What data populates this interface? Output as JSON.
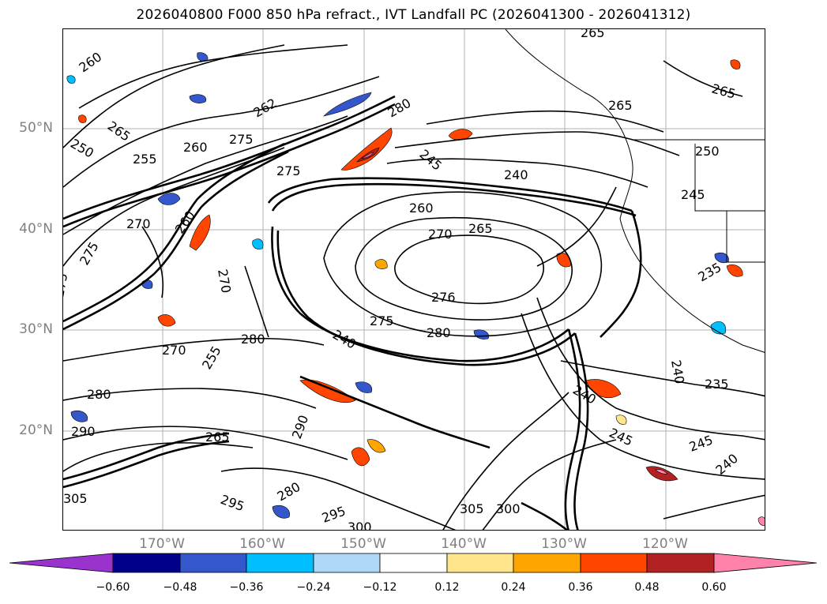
{
  "title": "2026040800 F000 850 hPa refract., IVT Landfall PC (2026041300 - 2026041312)",
  "map": {
    "lat_labels": [
      "50°N",
      "40°N",
      "30°N",
      "20°N"
    ],
    "lon_labels": [
      "170°W",
      "160°W",
      "150°W",
      "140°W",
      "130°W",
      "120°W"
    ],
    "contour_labels": [
      "260",
      "265",
      "250",
      "255",
      "260",
      "262",
      "270",
      "275",
      "280",
      "245",
      "240",
      "265",
      "265",
      "265",
      "260",
      "270",
      "260",
      "270",
      "265",
      "280",
      "275",
      "275",
      "240",
      "280",
      "276",
      "270",
      "275",
      "280",
      "290",
      "265",
      "255",
      "240",
      "245",
      "245",
      "235",
      "240",
      "305",
      "300",
      "295",
      "280",
      "235",
      "250",
      "245",
      "240",
      "275",
      "290",
      "295",
      "300",
      "305"
    ],
    "grid_color": "#b0b0b0",
    "land_color": "#000000"
  },
  "colorbar": {
    "ticks": [
      "−0.60",
      "−0.48",
      "−0.36",
      "−0.24",
      "−0.12",
      "0.12",
      "0.24",
      "0.36",
      "0.48",
      "0.60"
    ],
    "colors": [
      "#9a32cd",
      "#00008b",
      "#3458cc",
      "#00bfff",
      "#add8f8",
      "#ffffff",
      "#ffe68c",
      "#ffa500",
      "#ff4500",
      "#b22222",
      "#ff82ab"
    ]
  }
}
